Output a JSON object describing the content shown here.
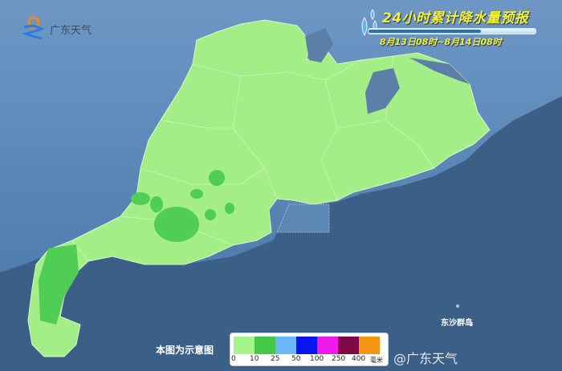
{
  "title": "24小时累计降水量预报",
  "subtitle": "8月13日08时~8月14日08时",
  "logo_text": "广东天气",
  "note": "本图为示意图",
  "island_label": "东沙群岛",
  "watermark": "@广东天气",
  "legend": {
    "unit": "毫米",
    "labels": [
      "0",
      "10",
      "25",
      "50",
      "100",
      "250",
      "400"
    ],
    "colors": [
      "#a6f58a",
      "#43c84a",
      "#6ab8f8",
      "#0a14ee",
      "#ee1ae8",
      "#7d0a46",
      "#f39511"
    ]
  },
  "colors": {
    "sea": "#3b5f86",
    "land_outside": "#5d89b8",
    "province_light_rain": "#a6f58a",
    "moderate_rain": "#43c84a"
  }
}
